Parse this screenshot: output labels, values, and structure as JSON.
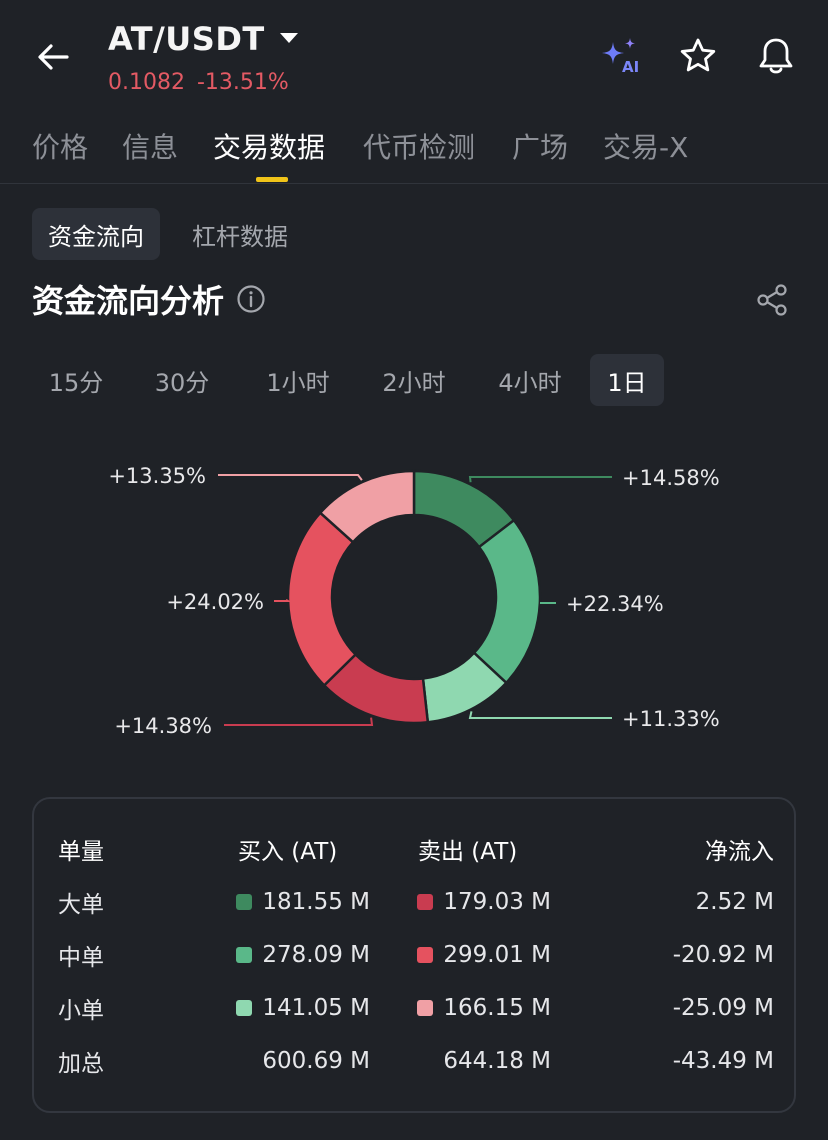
{
  "header": {
    "pair": "AT/USDT",
    "price": "0.1082",
    "change": "-13.51%",
    "icons": [
      "back-arrow-icon",
      "dropdown-caret-icon",
      "ai-sparkle-icon",
      "star-icon",
      "bell-icon"
    ],
    "ai_badge": "AI"
  },
  "tabs": [
    {
      "label": "价格"
    },
    {
      "label": "信息"
    },
    {
      "label": "交易数据"
    },
    {
      "label": "代币检测"
    },
    {
      "label": "广场"
    },
    {
      "label": "交易-X"
    }
  ],
  "active_tab": "交易数据",
  "subtabs": [
    {
      "label": "资金流向"
    },
    {
      "label": "杠杆数据"
    }
  ],
  "section": {
    "title": "资金流向分析"
  },
  "periods": [
    {
      "label": "15分"
    },
    {
      "label": "30分"
    },
    {
      "label": "1小时"
    },
    {
      "label": "2小时"
    },
    {
      "label": "4小时"
    },
    {
      "label": "1日"
    }
  ],
  "active_period": "1日",
  "chart_data": {
    "type": "pie",
    "donut": true,
    "slices": [
      {
        "label": "+14.58%",
        "value": 14.58,
        "color": "#3e8a5f"
      },
      {
        "label": "+22.34%",
        "value": 22.34,
        "color": "#5ab889"
      },
      {
        "label": "+11.33%",
        "value": 11.33,
        "color": "#8fd8b0"
      },
      {
        "label": "+14.38%",
        "value": 14.38,
        "color": "#c93c50"
      },
      {
        "label": "+24.02%",
        "value": 24.02,
        "color": "#e5525f"
      },
      {
        "label": "+13.35%",
        "value": 13.35,
        "color": "#f0a0a5"
      }
    ]
  },
  "table": {
    "headers": [
      "单量",
      "买入 (AT)",
      "卖出 (AT)",
      "净流入"
    ],
    "rows": [
      {
        "label": "大单",
        "buy": "181.55 M",
        "sell": "179.03 M",
        "net": "2.52 M",
        "buy_color": "#3e8a5f",
        "sell_color": "#c93c50"
      },
      {
        "label": "中单",
        "buy": "278.09 M",
        "sell": "299.01 M",
        "net": "-20.92 M",
        "buy_color": "#5ab889",
        "sell_color": "#e5525f"
      },
      {
        "label": "小单",
        "buy": "141.05 M",
        "sell": "166.15 M",
        "net": "-25.09 M",
        "buy_color": "#8fd8b0",
        "sell_color": "#f0a0a5"
      },
      {
        "label": "加总",
        "buy": "600.69 M",
        "sell": "644.18 M",
        "net": "-43.49 M"
      }
    ]
  }
}
